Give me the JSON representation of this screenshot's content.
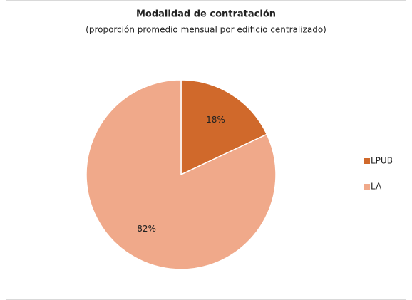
{
  "chart_data": {
    "type": "pie",
    "title": "Modalidad de contratación",
    "subtitle": "(proporción promedio mensual por edificio centralizado)",
    "categories": [
      "LPUB",
      "LA"
    ],
    "values": [
      18,
      82
    ],
    "value_labels": [
      "18%",
      "82%"
    ],
    "colors": [
      "#d0692b",
      "#f0a98a"
    ],
    "legend": "right"
  }
}
